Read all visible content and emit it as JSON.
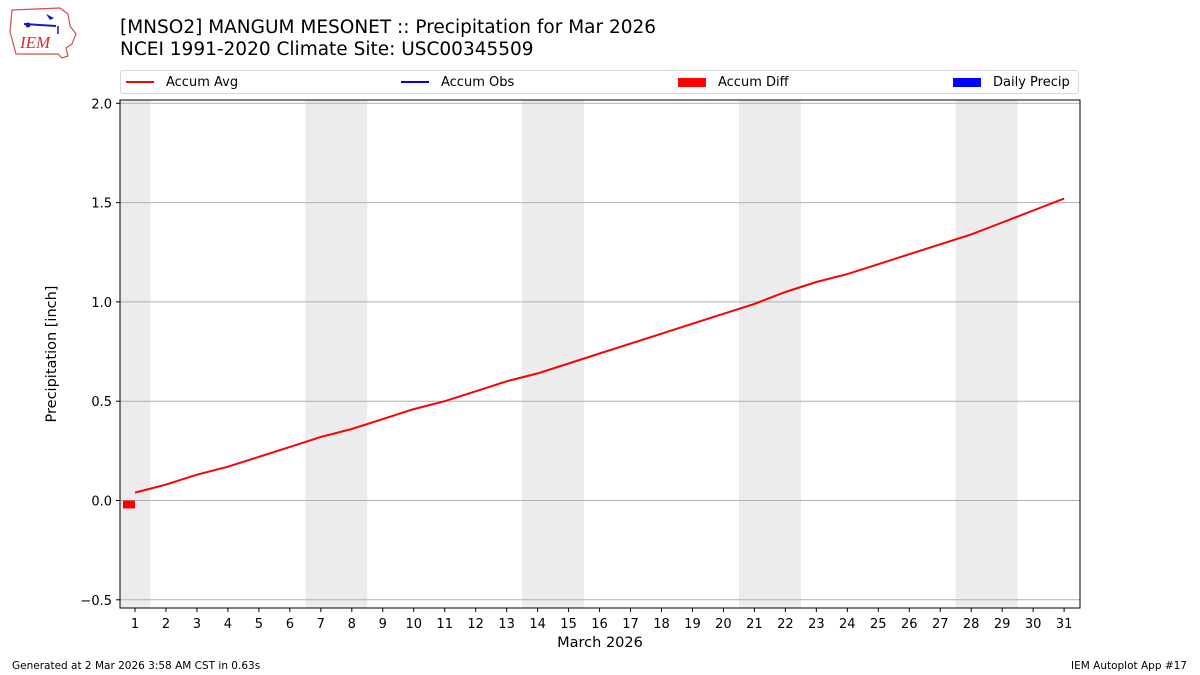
{
  "header": {
    "logo_text": "IEM",
    "title_line1": "[MNSO2] MANGUM MESONET :: Precipitation for Mar 2026",
    "title_line2": "NCEI 1991-2020 Climate Site: USC00345509"
  },
  "legend": {
    "items": [
      {
        "label": "Accum Avg",
        "kind": "line",
        "color": "#ff0000"
      },
      {
        "label": "Accum Obs",
        "kind": "line",
        "color": "#0000ff"
      },
      {
        "label": "Accum Diff",
        "kind": "patch",
        "color": "#ff0000"
      },
      {
        "label": "Daily Precip",
        "kind": "patch",
        "color": "#0000ff"
      }
    ]
  },
  "axes": {
    "ylabel": "Precipitation [inch]",
    "xlabel": "March 2026",
    "yticks": [
      "2.0",
      "1.5",
      "1.0",
      "0.5",
      "0.0",
      "−0.5"
    ],
    "xticks": [
      "1",
      "2",
      "3",
      "4",
      "5",
      "6",
      "7",
      "8",
      "9",
      "10",
      "11",
      "12",
      "13",
      "14",
      "15",
      "16",
      "17",
      "18",
      "19",
      "20",
      "21",
      "22",
      "23",
      "24",
      "25",
      "26",
      "27",
      "28",
      "29",
      "30",
      "31"
    ]
  },
  "footer": {
    "generated": "Generated at 2 Mar 2026 3:58 AM CST in 0.63s",
    "app": "IEM Autoplot App #17"
  },
  "chart_data": {
    "type": "line",
    "title": "[MNSO2] MANGUM MESONET :: Precipitation for Mar 2026",
    "subtitle": "NCEI 1991-2020 Climate Site: USC00345509",
    "xlabel": "March 2026",
    "ylabel": "Precipitation [inch]",
    "ylim": [
      -0.55,
      2.02
    ],
    "xlim": [
      0.5,
      31.5
    ],
    "grid": "y",
    "legend_position": "top",
    "x": [
      1,
      2,
      3,
      4,
      5,
      6,
      7,
      8,
      9,
      10,
      11,
      12,
      13,
      14,
      15,
      16,
      17,
      18,
      19,
      20,
      21,
      22,
      23,
      24,
      25,
      26,
      27,
      28,
      29,
      30,
      31
    ],
    "series": [
      {
        "name": "Accum Avg",
        "type": "line",
        "color": "#ff0000",
        "values": [
          0.04,
          0.08,
          0.13,
          0.17,
          0.22,
          0.27,
          0.32,
          0.36,
          0.41,
          0.46,
          0.5,
          0.55,
          0.6,
          0.64,
          0.69,
          0.74,
          0.79,
          0.84,
          0.89,
          0.94,
          0.99,
          1.05,
          1.1,
          1.14,
          1.19,
          1.24,
          1.29,
          1.34,
          1.4,
          1.46,
          1.52
        ]
      },
      {
        "name": "Accum Obs",
        "type": "line",
        "color": "#0000ff",
        "values": [
          0.0
        ]
      },
      {
        "name": "Accum Diff",
        "type": "bar",
        "color": "#ff0000",
        "values": [
          -0.04
        ]
      },
      {
        "name": "Daily Precip",
        "type": "bar",
        "color": "#0000ff",
        "values": [
          0.0
        ]
      }
    ],
    "weekend_shading": [
      [
        0.5,
        1.5
      ],
      [
        6.5,
        8.5
      ],
      [
        13.5,
        15.5
      ],
      [
        20.5,
        22.5
      ],
      [
        27.5,
        29.5
      ]
    ]
  }
}
